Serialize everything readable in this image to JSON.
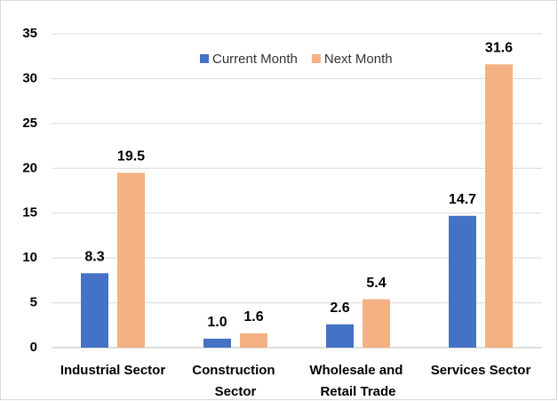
{
  "chart_data": {
    "type": "bar",
    "categories": [
      "Industrial Sector",
      "Construction Sector",
      "Wholesale and Retail Trade",
      "Services Sector"
    ],
    "series": [
      {
        "name": "Current Month",
        "color": "#4472c4",
        "values": [
          8.3,
          1.0,
          2.6,
          14.7
        ],
        "value_labels": [
          "8.3",
          "1.0",
          "2.6",
          "14.7"
        ]
      },
      {
        "name": "Next Month",
        "color": "#f4b183",
        "values": [
          19.5,
          1.6,
          5.4,
          31.6
        ],
        "value_labels": [
          "19.5",
          "1.6",
          "5.4",
          "31.6"
        ]
      }
    ],
    "ylim": [
      0,
      35
    ],
    "yticks": [
      0,
      5,
      10,
      15,
      20,
      25,
      30,
      35
    ],
    "grid": true,
    "legend": "top"
  }
}
